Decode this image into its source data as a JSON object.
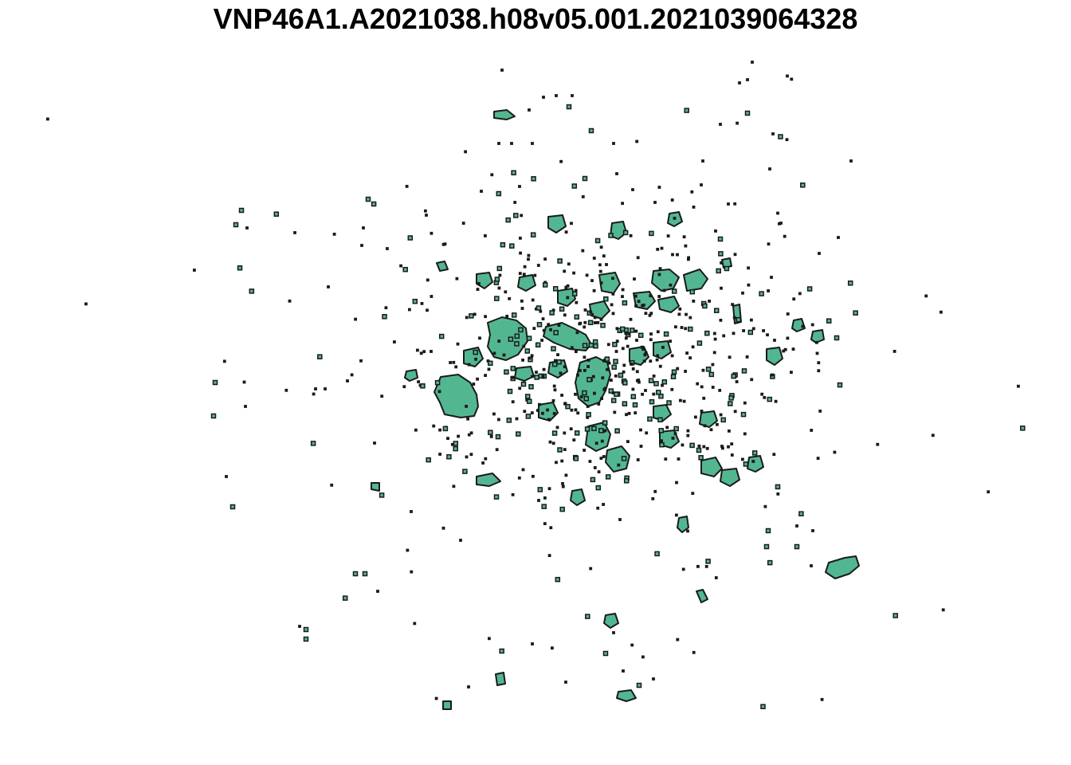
{
  "title": "VNP46A1.A2021038.h08v05.001.2021039064328",
  "style": {
    "fill_color": "#52b791",
    "stroke_color": "#1a1a1a",
    "background": "#ffffff"
  }
}
